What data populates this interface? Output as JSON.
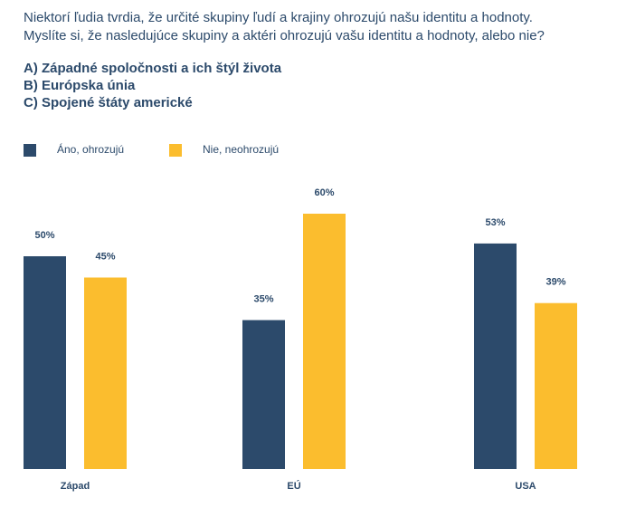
{
  "question": {
    "line1": "Niektorí ľudia tvrdia, že určité skupiny ľudí a krajiny ohrozujú našu identitu a hodnoty.",
    "line2": "Myslíte si, že nasledujúce skupiny a aktéri ohrozujú vašu identitu a hodnoty, alebo nie?"
  },
  "options": [
    "A) Západné spoločnosti a ich štýl života",
    "B) Európska únia",
    "C) Spojené štáty americké"
  ],
  "colors": {
    "series1": "#2c4a6b",
    "series2": "#fbbd2e",
    "text": "#2c4a6b"
  },
  "chart_data": {
    "type": "bar",
    "categories": [
      "Západ",
      "EÚ",
      "USA"
    ],
    "series": [
      {
        "name": "Áno, ohrozujú",
        "values": [
          50,
          35,
          53
        ],
        "labels": [
          "50%",
          "35%",
          "53%"
        ]
      },
      {
        "name": "Nie, neohrozujú",
        "values": [
          45,
          60,
          39
        ],
        "labels": [
          "45%",
          "60%",
          "39%"
        ]
      }
    ],
    "ylim": [
      0,
      100
    ],
    "grid": false,
    "legend": "top-left"
  }
}
